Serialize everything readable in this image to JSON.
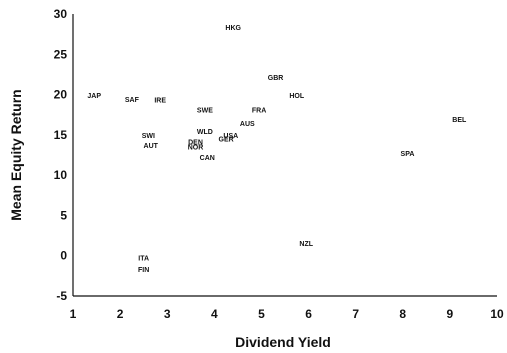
{
  "chart_data": {
    "type": "scatter",
    "title": "",
    "xlabel": "Dividend Yield",
    "ylabel": "Mean Equity Return",
    "xlim": [
      1,
      10
    ],
    "ylim": [
      -5,
      30
    ],
    "xticks": [
      "1",
      "2",
      "3",
      "4",
      "5",
      "6",
      "7",
      "8",
      "9",
      "10"
    ],
    "yticks": [
      "30",
      "25",
      "20",
      "15",
      "10",
      "5",
      "0",
      "-5"
    ],
    "grid": false,
    "points": [
      {
        "label": "HKG",
        "x": 4.4,
        "y": 28.3
      },
      {
        "label": "GBR",
        "x": 5.3,
        "y": 22.1
      },
      {
        "label": "HOL",
        "x": 5.75,
        "y": 19.9
      },
      {
        "label": "JAP",
        "x": 1.45,
        "y": 19.9
      },
      {
        "label": "SAF",
        "x": 2.25,
        "y": 19.4
      },
      {
        "label": "IRE",
        "x": 2.85,
        "y": 19.3
      },
      {
        "label": "SWE",
        "x": 3.8,
        "y": 18.1
      },
      {
        "label": "FRA",
        "x": 4.95,
        "y": 18.1
      },
      {
        "label": "BEL",
        "x": 9.2,
        "y": 16.9
      },
      {
        "label": "AUS",
        "x": 4.7,
        "y": 16.4
      },
      {
        "label": "WLD",
        "x": 3.8,
        "y": 15.4
      },
      {
        "label": "SWI",
        "x": 2.6,
        "y": 14.9
      },
      {
        "label": "USA",
        "x": 4.35,
        "y": 14.9
      },
      {
        "label": "GER",
        "x": 4.25,
        "y": 14.5
      },
      {
        "label": "DEN",
        "x": 3.6,
        "y": 14.1
      },
      {
        "label": "AUT",
        "x": 2.65,
        "y": 13.7
      },
      {
        "label": "NOR",
        "x": 3.6,
        "y": 13.5
      },
      {
        "label": "SPA",
        "x": 8.1,
        "y": 12.7
      },
      {
        "label": "CAN",
        "x": 3.85,
        "y": 12.2
      },
      {
        "label": "NZL",
        "x": 5.95,
        "y": 1.5
      },
      {
        "label": "ITA",
        "x": 2.5,
        "y": -0.3
      },
      {
        "label": "FIN",
        "x": 2.5,
        "y": -1.7
      }
    ]
  }
}
